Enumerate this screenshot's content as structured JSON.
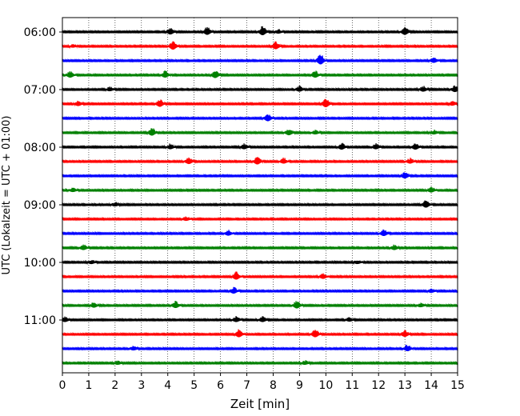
{
  "chart_data": {
    "type": "line",
    "title": "",
    "xlabel": "Zeit  [min]",
    "ylabel": "UTC (Lokalzeit = UTC + 01:00)",
    "xlim": [
      0,
      15
    ],
    "x_ticks": [
      "0",
      "1",
      "2",
      "3",
      "4",
      "5",
      "6",
      "7",
      "8",
      "9",
      "10",
      "11",
      "12",
      "13",
      "14",
      "15"
    ],
    "y_ticks": [
      "06:00",
      "07:00",
      "08:00",
      "09:00",
      "10:00",
      "11:00"
    ],
    "grid": "vertical dotted",
    "trace_minutes": 15,
    "trace_colors": [
      "#000000",
      "#ff0000",
      "#0000ff",
      "#008000"
    ],
    "traces": [
      {
        "start": "06:00",
        "events": [
          [
            4.1,
            5
          ],
          [
            5.5,
            6
          ],
          [
            7.6,
            7
          ],
          [
            8.2,
            3
          ],
          [
            13.0,
            6
          ]
        ]
      },
      {
        "start": "06:15",
        "events": [
          [
            0.4,
            2
          ],
          [
            4.2,
            7
          ],
          [
            8.1,
            6
          ]
        ]
      },
      {
        "start": "06:30",
        "events": [
          [
            9.8,
            8
          ],
          [
            14.1,
            4
          ]
        ]
      },
      {
        "start": "06:45",
        "events": [
          [
            0.3,
            5
          ],
          [
            3.9,
            5
          ],
          [
            5.8,
            6
          ],
          [
            9.6,
            5
          ]
        ]
      },
      {
        "start": "07:00",
        "events": [
          [
            1.8,
            3
          ],
          [
            9.0,
            4
          ],
          [
            13.7,
            4
          ],
          [
            14.9,
            5
          ]
        ]
      },
      {
        "start": "07:15",
        "events": [
          [
            0.6,
            4
          ],
          [
            3.7,
            6
          ],
          [
            10.0,
            7
          ],
          [
            14.8,
            3
          ]
        ]
      },
      {
        "start": "07:30",
        "events": [
          [
            7.8,
            6
          ]
        ]
      },
      {
        "start": "07:45",
        "events": [
          [
            3.4,
            6
          ],
          [
            8.6,
            5
          ],
          [
            9.6,
            3
          ],
          [
            14.1,
            3
          ]
        ]
      },
      {
        "start": "08:00",
        "events": [
          [
            4.1,
            4
          ],
          [
            6.9,
            4
          ],
          [
            10.6,
            5
          ],
          [
            11.9,
            4
          ],
          [
            13.4,
            5
          ]
        ]
      },
      {
        "start": "08:15",
        "events": [
          [
            4.8,
            5
          ],
          [
            7.4,
            6
          ],
          [
            8.4,
            4
          ],
          [
            13.2,
            4
          ]
        ]
      },
      {
        "start": "08:30",
        "events": [
          [
            13.0,
            5
          ]
        ]
      },
      {
        "start": "08:45",
        "events": [
          [
            0.4,
            3
          ],
          [
            14.0,
            4
          ]
        ]
      },
      {
        "start": "09:00",
        "events": [
          [
            2.0,
            3
          ],
          [
            13.8,
            6
          ]
        ]
      },
      {
        "start": "09:15",
        "events": [
          [
            4.7,
            3
          ]
        ]
      },
      {
        "start": "09:30",
        "events": [
          [
            6.3,
            4
          ],
          [
            12.2,
            5
          ]
        ]
      },
      {
        "start": "09:45",
        "events": [
          [
            0.8,
            4
          ],
          [
            12.6,
            4
          ]
        ]
      },
      {
        "start": "10:00",
        "events": [
          [
            1.1,
            3
          ],
          [
            11.2,
            3
          ]
        ]
      },
      {
        "start": "10:15",
        "events": [
          [
            6.6,
            6
          ],
          [
            9.9,
            4
          ]
        ]
      },
      {
        "start": "10:30",
        "events": [
          [
            6.5,
            5
          ],
          [
            14.0,
            3
          ]
        ]
      },
      {
        "start": "10:45",
        "events": [
          [
            1.2,
            4
          ],
          [
            4.3,
            5
          ],
          [
            8.9,
            6
          ],
          [
            13.6,
            3
          ]
        ]
      },
      {
        "start": "11:00",
        "events": [
          [
            0.1,
            4
          ],
          [
            6.6,
            4
          ],
          [
            7.6,
            4
          ],
          [
            10.9,
            3
          ]
        ]
      },
      {
        "start": "11:15",
        "events": [
          [
            6.7,
            6
          ],
          [
            9.6,
            6
          ],
          [
            13.0,
            5
          ]
        ]
      },
      {
        "start": "11:30",
        "events": [
          [
            2.7,
            3
          ],
          [
            13.1,
            5
          ]
        ]
      },
      {
        "start": "11:45",
        "events": [
          [
            2.1,
            3
          ],
          [
            9.2,
            3
          ]
        ]
      }
    ]
  }
}
